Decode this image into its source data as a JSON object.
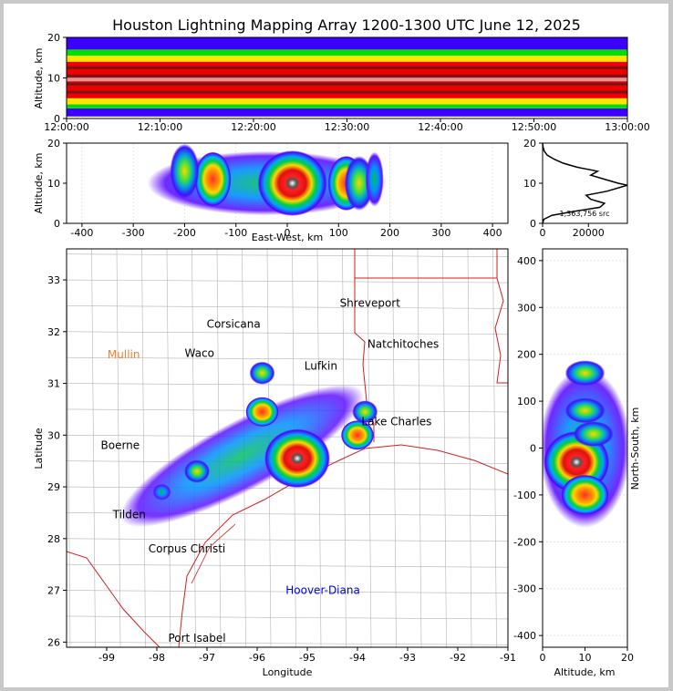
{
  "title": "Houston Lightning Mapping Array 1200-1300 UTC June 12, 2025",
  "chart_data": [
    {
      "type": "heatmap",
      "panel": "altitude-time",
      "ylabel": "Altitude, km",
      "ylim": [
        0,
        20
      ],
      "yticks": [
        "0",
        "10",
        "20"
      ],
      "xlim": [
        "12:00:00",
        "13:00:00"
      ],
      "xticks": [
        "12:00:00",
        "12:10:00",
        "12:20:00",
        "12:30:00",
        "12:40:00",
        "12:50:00",
        "13:00:00"
      ],
      "source_layers_km": [
        {
          "bottom": 0.5,
          "top": 2.5,
          "level": "blue"
        },
        {
          "bottom": 2.5,
          "top": 3.5,
          "level": "green"
        },
        {
          "bottom": 3.5,
          "top": 5,
          "level": "yellow"
        },
        {
          "bottom": 5,
          "top": 14,
          "level": "red"
        },
        {
          "bottom": 14,
          "top": 15.5,
          "level": "yellow"
        },
        {
          "bottom": 15.5,
          "top": 17,
          "level": "green"
        },
        {
          "bottom": 17,
          "top": 20,
          "level": "blue"
        }
      ]
    },
    {
      "type": "heatmap",
      "panel": "altitude-east-west",
      "xlabel": "East-West, km",
      "ylabel": "Altitude, km",
      "xlim": [
        -430,
        430
      ],
      "ylim": [
        0,
        20
      ],
      "xticks": [
        "-400",
        "-300",
        "-200",
        "-100",
        "0",
        "100",
        "200",
        "300",
        "400"
      ],
      "yticks": [
        "0",
        "10",
        "20"
      ],
      "cells": [
        {
          "x": 10,
          "y": 10,
          "level": "max"
        },
        {
          "x": -145,
          "y": 11,
          "level": "high"
        },
        {
          "x": -200,
          "y": 13,
          "level": "mid"
        },
        {
          "x": 115,
          "y": 10,
          "level": "high"
        },
        {
          "x": 140,
          "y": 10,
          "level": "mid"
        },
        {
          "x": 170,
          "y": 11,
          "level": "low"
        }
      ]
    },
    {
      "type": "line",
      "panel": "altitude-histogram",
      "annotation": "1,363,756 src",
      "xlim": [
        0,
        37000
      ],
      "ylim": [
        0,
        20
      ],
      "xticks": [
        "0",
        "20000"
      ],
      "yticks": [
        "0",
        "10",
        "20"
      ],
      "points": [
        [
          0,
          0
        ],
        [
          500,
          1
        ],
        [
          4000,
          2
        ],
        [
          14000,
          3
        ],
        [
          25000,
          4
        ],
        [
          27000,
          5
        ],
        [
          21000,
          6
        ],
        [
          19000,
          7
        ],
        [
          28000,
          8
        ],
        [
          34000,
          9
        ],
        [
          37000,
          9.5
        ],
        [
          33000,
          10
        ],
        [
          27000,
          11
        ],
        [
          21000,
          12
        ],
        [
          24000,
          13
        ],
        [
          15000,
          14
        ],
        [
          9000,
          15
        ],
        [
          5000,
          16
        ],
        [
          2000,
          17
        ],
        [
          700,
          18
        ],
        [
          200,
          19
        ],
        [
          0,
          20
        ]
      ]
    },
    {
      "type": "scatter",
      "panel": "plan-view-map",
      "xlabel": "Longitude",
      "ylabel": "Latitude",
      "xlim": [
        -99.8,
        -91.0
      ],
      "ylim": [
        25.9,
        33.6
      ],
      "xticks": [
        "-99",
        "-98",
        "-97",
        "-96",
        "-95",
        "-94",
        "-93",
        "-92",
        "-91"
      ],
      "yticks": [
        "26",
        "27",
        "28",
        "29",
        "30",
        "31",
        "32",
        "33"
      ],
      "cities": [
        {
          "name": "Shreveport",
          "lon": -93.75,
          "lat": 32.55,
          "color": "#000000"
        },
        {
          "name": "Corsicana",
          "lon": -96.47,
          "lat": 32.15,
          "color": "#000000"
        },
        {
          "name": "Natchitoches",
          "lon": -93.09,
          "lat": 31.76,
          "color": "#000000"
        },
        {
          "name": "Mullin",
          "lon": -98.66,
          "lat": 31.56,
          "color": "#f08030"
        },
        {
          "name": "Waco",
          "lon": -97.15,
          "lat": 31.58,
          "color": "#000000"
        },
        {
          "name": "Lufkin",
          "lon": -94.73,
          "lat": 31.34,
          "color": "#000000"
        },
        {
          "name": "Lake Charles",
          "lon": -93.22,
          "lat": 30.26,
          "color": "#000000"
        },
        {
          "name": "Boerne",
          "lon": -98.73,
          "lat": 29.8,
          "color": "#000000"
        },
        {
          "name": "Tilden",
          "lon": -98.55,
          "lat": 28.46,
          "color": "#000000"
        },
        {
          "name": "Corpus Christi",
          "lon": -97.4,
          "lat": 27.8,
          "color": "#000000"
        },
        {
          "name": "Hoover-Diana",
          "lon": -94.69,
          "lat": 27.0,
          "color": "#0000dd"
        },
        {
          "name": "Port Isabel",
          "lon": -97.2,
          "lat": 26.08,
          "color": "#000000"
        }
      ],
      "storm_cells": [
        {
          "lon": -95.2,
          "lat": 29.55,
          "level": "max"
        },
        {
          "lon": -95.9,
          "lat": 30.45,
          "level": "high"
        },
        {
          "lon": -95.9,
          "lat": 31.2,
          "level": "mid"
        },
        {
          "lon": -94.0,
          "lat": 30.0,
          "level": "high"
        },
        {
          "lon": -97.2,
          "lat": 29.3,
          "level": "mid"
        },
        {
          "lon": -97.9,
          "lat": 28.9,
          "level": "low"
        },
        {
          "lon": -93.85,
          "lat": 30.45,
          "level": "mid"
        }
      ]
    },
    {
      "type": "heatmap",
      "panel": "north-south-altitude",
      "xlabel": "Altitude, km",
      "ylabel": "North-South, km",
      "xlim": [
        0,
        20
      ],
      "ylim": [
        -425,
        425
      ],
      "xticks": [
        "0",
        "10",
        "20"
      ],
      "yticks": [
        "-400",
        "-300",
        "-200",
        "-100",
        "0",
        "100",
        "200",
        "300",
        "400"
      ],
      "cells": [
        {
          "x": 8,
          "y": -30,
          "level": "max"
        },
        {
          "x": 10,
          "y": -100,
          "level": "high"
        },
        {
          "x": 10,
          "y": 80,
          "level": "mid"
        },
        {
          "x": 10,
          "y": 160,
          "level": "mid"
        },
        {
          "x": 12,
          "y": 30,
          "level": "mid"
        }
      ]
    }
  ],
  "colors": {
    "blue": "#3c00ff",
    "green": "#00e000",
    "yellow": "#ffe400",
    "red": "#ee0000",
    "max": "#ffffff",
    "state_line": "#d02020",
    "county_line": "#b4b4b4"
  }
}
